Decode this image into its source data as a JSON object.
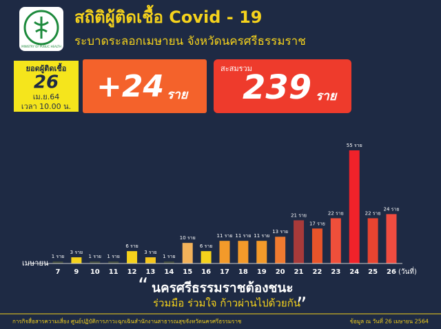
{
  "header": {
    "logo_text": "MINISTRY OF PUBLIC HEALTH",
    "title": "สถิติผู้ติดเชื้อ Covid - 19",
    "subtitle": "ระบาดระลอกเมษายน จังหวัดนครศรีธรรมราช"
  },
  "summary": {
    "label": "ยอดผู้ติดเชื้อ",
    "day": "26",
    "date": "เม.ย.64",
    "time": "เวลา 10.00 น.",
    "new_cases": "+24",
    "new_unit": "ราย",
    "total_label": "สะสมรวม",
    "total": "239",
    "total_unit": "ราย"
  },
  "chart_data": {
    "type": "bar",
    "x_label": "เมษายน",
    "x_unit": "(วันที่)",
    "categories": [
      "7",
      "9",
      "10",
      "11",
      "12",
      "13",
      "14",
      "15",
      "16",
      "17",
      "18",
      "19",
      "20",
      "21",
      "22",
      "23",
      "24",
      "25",
      "26"
    ],
    "values": [
      1,
      3,
      1,
      1,
      6,
      3,
      1,
      10,
      6,
      11,
      11,
      11,
      13,
      21,
      17,
      22,
      55,
      22,
      24
    ],
    "value_labels": [
      "1 ราย",
      "3 ราย",
      "1 ราย",
      "1 ราย",
      "6 ราย",
      "3 ราย",
      "1 ราย",
      "10 ราย",
      "6 ราย",
      "11 ราย",
      "11 ราย",
      "11 ราย",
      "13 ราย",
      "21 ราย",
      "17 ราย",
      "22 ราย",
      "55 ราย",
      "22 ราย",
      "24 ราย"
    ],
    "colors": [
      "#3f4a3c",
      "#f5d21c",
      "#3f4a3c",
      "#3f4a3c",
      "#f5d21c",
      "#f5c61c",
      "#3f4a3c",
      "#f2b25a",
      "#f5d21c",
      "#f39a2a",
      "#f39a2a",
      "#f39a2a",
      "#f07a30",
      "#a83a3a",
      "#e8542a",
      "#ef4f3a",
      "#f0222a",
      "#e84430",
      "#f04c40"
    ]
  },
  "slogan": {
    "line1": "นครศรีธรรมราชต้องชนะ",
    "line2": "ร่วมมือ ร่วมใจ ก้าวผ่านไปด้วยกัน"
  },
  "footer": {
    "left": "การกิจสื่อสารความเสี่ยง ศูนย์ปฏิบัติการภาวะฉุกเฉินสำนักงานสาธารณสุขจังหวัดนครศรีธรรมราช",
    "right": "ข้อมูล ณ วันที่ 26 เมษายน 2564"
  }
}
